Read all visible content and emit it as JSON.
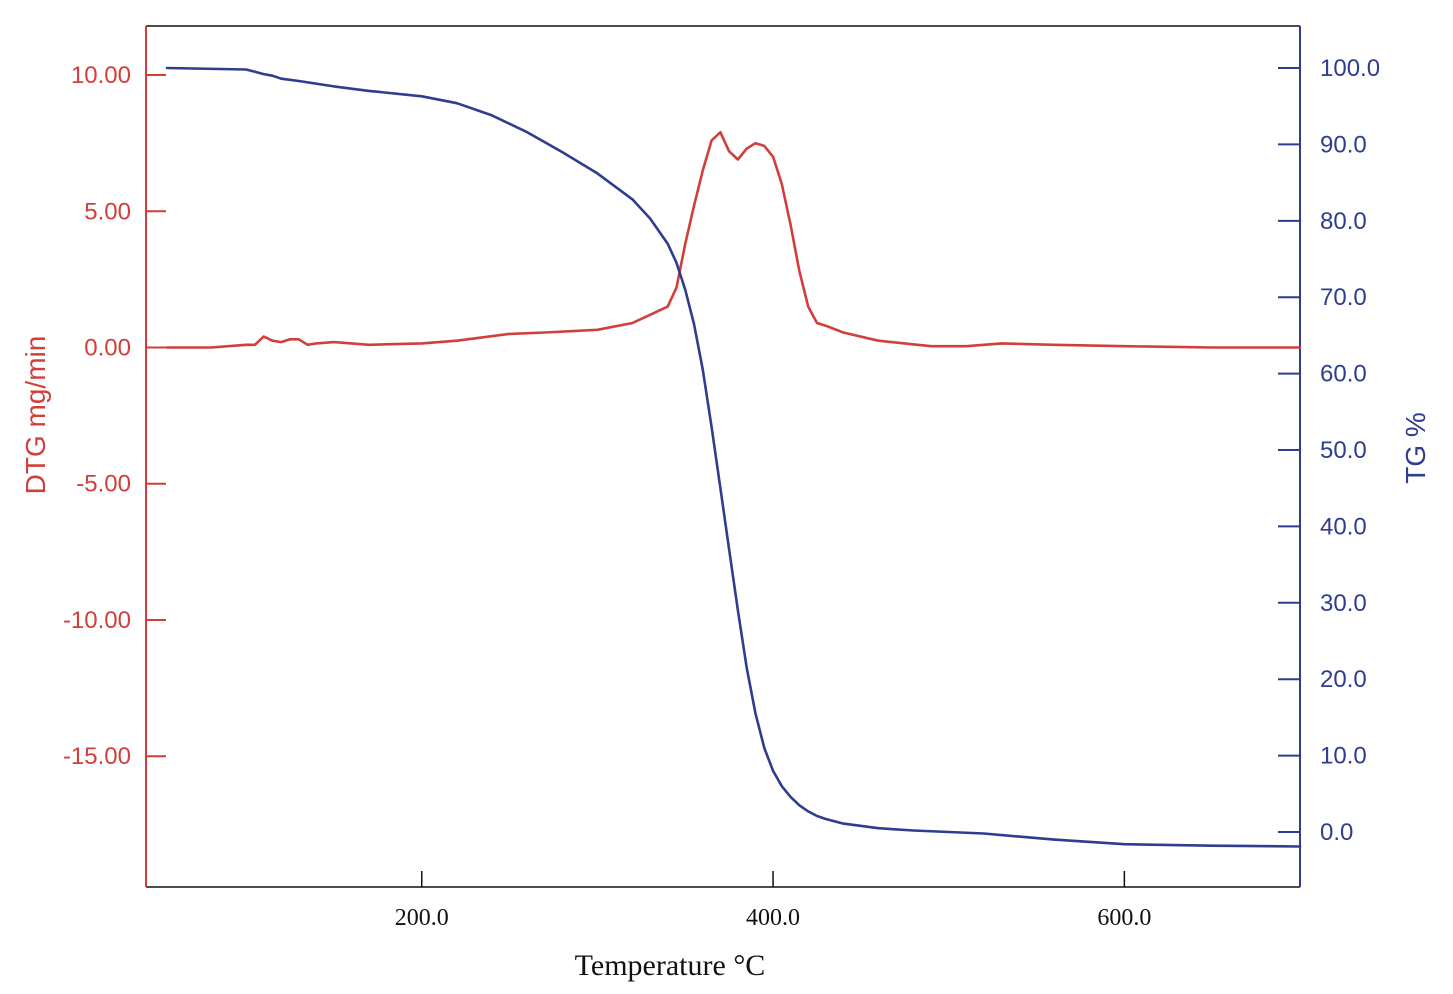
{
  "chart_data": {
    "type": "line",
    "xlabel": "Temperature °C",
    "ylabel_left": "DTG mg/min",
    "ylabel_right": "TG %",
    "xlim": [
      43,
      700
    ],
    "ylim_left": [
      -19.8,
      11.8
    ],
    "ylim_right": [
      -7.2,
      105.5
    ],
    "x_ticks": [
      200,
      400,
      600
    ],
    "x_tick_labels": [
      "200.0",
      "400.0",
      "600.0"
    ],
    "y_left_ticks": [
      10,
      5,
      0,
      -5,
      -10,
      -15
    ],
    "y_left_tick_labels": [
      "10.00",
      "5.00",
      "0.00",
      "-5.00",
      "-10.00",
      "-15.00"
    ],
    "y_right_ticks": [
      100,
      90,
      80,
      70,
      60,
      50,
      40,
      30,
      20,
      10,
      0
    ],
    "y_right_tick_labels": [
      "100.0",
      "90.0",
      "80.0",
      "70.0",
      "60.0",
      "50.0",
      "40.0",
      "30.0",
      "20.0",
      "10.0",
      "0.0"
    ],
    "colors": {
      "dtg": "#d23f3a",
      "tg": "#2e3d8f"
    },
    "grid": false,
    "series": [
      {
        "axis": "left",
        "x": [
          55,
          80,
          100,
          105,
          110,
          115,
          120,
          125,
          130,
          135,
          140,
          150,
          170,
          200,
          220,
          250,
          270,
          300,
          320,
          330,
          340,
          345,
          350,
          355,
          360,
          365,
          370,
          375,
          380,
          385,
          390,
          395,
          400,
          405,
          410,
          415,
          420,
          425,
          430,
          440,
          460,
          490,
          510,
          530,
          560,
          600,
          650,
          700
        ],
        "y": [
          0.0,
          0.0,
          0.1,
          0.1,
          0.4,
          0.25,
          0.2,
          0.3,
          0.3,
          0.1,
          0.15,
          0.2,
          0.1,
          0.15,
          0.25,
          0.5,
          0.55,
          0.65,
          0.9,
          1.2,
          1.5,
          2.2,
          3.8,
          5.2,
          6.5,
          7.6,
          7.9,
          7.2,
          6.9,
          7.3,
          7.5,
          7.4,
          7.0,
          6.0,
          4.5,
          2.8,
          1.5,
          0.9,
          0.8,
          0.55,
          0.25,
          0.05,
          0.05,
          0.15,
          0.1,
          0.05,
          0.0,
          0.0
        ]
      },
      {
        "axis": "right",
        "x": [
          55,
          100,
          105,
          110,
          115,
          120,
          130,
          150,
          170,
          200,
          220,
          240,
          260,
          280,
          300,
          320,
          330,
          340,
          345,
          350,
          355,
          360,
          365,
          370,
          375,
          380,
          385,
          390,
          395,
          400,
          405,
          410,
          415,
          420,
          425,
          430,
          440,
          460,
          480,
          500,
          520,
          540,
          560,
          600,
          650,
          700
        ],
        "y": [
          100.0,
          99.8,
          99.5,
          99.2,
          99.0,
          98.6,
          98.3,
          97.6,
          97.0,
          96.3,
          95.4,
          93.8,
          91.6,
          89.0,
          86.2,
          82.8,
          80.3,
          77.0,
          74.5,
          71.0,
          66.5,
          60.5,
          53.0,
          45.0,
          37.0,
          29.0,
          21.5,
          15.5,
          11.0,
          8.0,
          6.0,
          4.6,
          3.5,
          2.7,
          2.1,
          1.7,
          1.1,
          0.5,
          0.2,
          0.0,
          -0.2,
          -0.6,
          -1.0,
          -1.6,
          -1.8,
          -1.9
        ]
      }
    ]
  }
}
